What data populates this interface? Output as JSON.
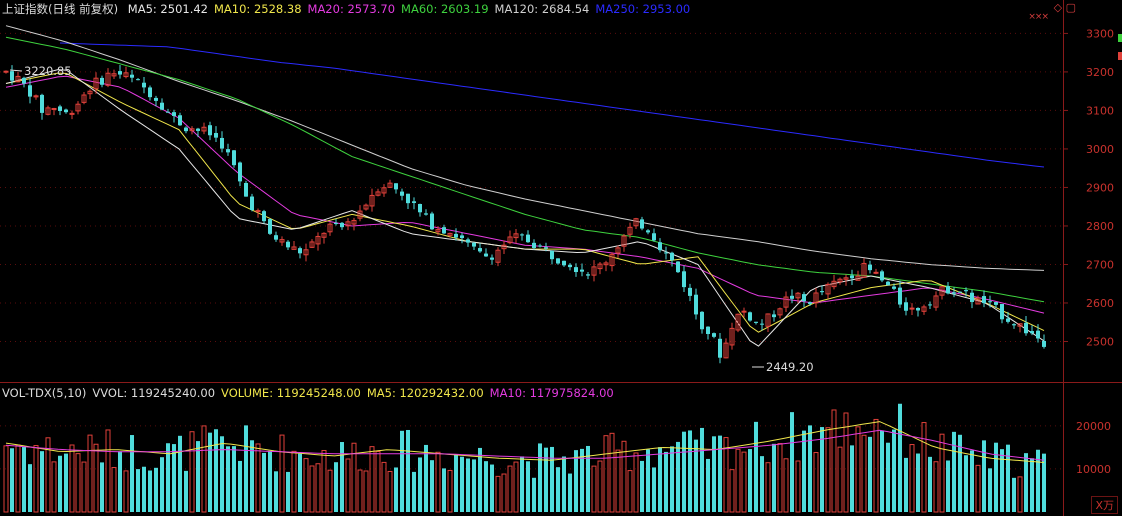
{
  "header": {
    "title": "上证指数(日线 前复权)",
    "ma_items": [
      {
        "label": "MA5: 2501.42",
        "color": "#e6e6e6"
      },
      {
        "label": "MA10: 2528.38",
        "color": "#f0e64b"
      },
      {
        "label": "MA20: 2573.70",
        "color": "#e43be0"
      },
      {
        "label": "MA60: 2603.19",
        "color": "#3ed23e"
      },
      {
        "label": "MA120: 2684.54",
        "color": "#cfcfcf"
      },
      {
        "label": "MA250: 2953.00",
        "color": "#2b2bff"
      }
    ]
  },
  "volume_header": {
    "items": [
      {
        "label": "VOL-TDX(5,10)",
        "color": "#dcdcdc"
      },
      {
        "label": "VVOL: 119245240.00",
        "color": "#dcdcdc"
      },
      {
        "label": "VOLUME: 119245248.00",
        "color": "#f0e64b"
      },
      {
        "label": "MA5: 120292432.00",
        "color": "#f0e64b"
      },
      {
        "label": "MA10: 117975824.00",
        "color": "#e43be0"
      }
    ]
  },
  "volume_unit": "X万",
  "colors": {
    "up": "#e0413a",
    "down": "#50dcdc",
    "grid": "#5a0d0d",
    "axis_text": "#c8322d"
  },
  "chart_data": {
    "type": "candlestick",
    "price_axis": {
      "ylim": [
        2400,
        3340
      ],
      "ticks": [
        "3300",
        "3200",
        "3100",
        "3000",
        "2900",
        "2800",
        "2700",
        "2600",
        "2500"
      ]
    },
    "volume_axis": {
      "ylim": [
        0,
        26000
      ],
      "ticks": [
        "20000",
        "10000"
      ]
    },
    "annotations": {
      "high": "3220.85",
      "low": "2449.20"
    },
    "ma_end_values": {
      "MA5": 2501.42,
      "MA10": 2528.38,
      "MA20": 2573.7,
      "MA60": 2603.19,
      "MA120": 2684.54,
      "MA250": 2953.0
    },
    "price_path": [
      3200,
      3180,
      3150,
      3100,
      3110,
      3090,
      3120,
      3160,
      3180,
      3200,
      3190,
      3170,
      3150,
      3120,
      3080,
      3060,
      3050,
      3040,
      3020,
      2960,
      2880,
      2840,
      2780,
      2760,
      2740,
      2730,
      2760,
      2800,
      2790,
      2820,
      2850,
      2900,
      2910,
      2890,
      2860,
      2820,
      2800,
      2790,
      2770,
      2740,
      2720,
      2730,
      2760,
      2770,
      2760,
      2740,
      2720,
      2710,
      2690,
      2680,
      2700,
      2740,
      2780,
      2810,
      2790,
      2740,
      2700,
      2640,
      2560,
      2520,
      2460,
      2560,
      2580,
      2540,
      2560,
      2600,
      2620,
      2600,
      2620,
      2640,
      2660,
      2680,
      2690,
      2670,
      2640,
      2600,
      2580,
      2600,
      2620,
      2640,
      2630,
      2610,
      2600,
      2580,
      2560,
      2540,
      2520,
      2500
    ],
    "ma_paths": {
      "MA250": [
        3275,
        3270,
        3265,
        3245,
        3225,
        3210,
        3190,
        3170,
        3150,
        3130,
        3110,
        3090,
        3070,
        3050,
        3030,
        3010,
        2990,
        2970,
        2953
      ],
      "MA120": [
        3320,
        3280,
        3230,
        3175,
        3125,
        3070,
        3010,
        2950,
        2905,
        2870,
        2840,
        2810,
        2780,
        2760,
        2735,
        2715,
        2700,
        2690,
        2684.54
      ],
      "MA60": [
        3290,
        3260,
        3220,
        3180,
        3130,
        3060,
        2980,
        2930,
        2880,
        2830,
        2790,
        2770,
        2730,
        2700,
        2680,
        2670,
        2650,
        2630,
        2603.19
      ],
      "MA20": [
        3160,
        3190,
        3160,
        3080,
        2940,
        2830,
        2800,
        2810,
        2780,
        2750,
        2740,
        2720,
        2690,
        2620,
        2600,
        2620,
        2640,
        2610,
        2573.7
      ],
      "MA10": [
        3170,
        3200,
        3120,
        3050,
        2860,
        2790,
        2830,
        2800,
        2760,
        2740,
        2740,
        2700,
        2720,
        2520,
        2600,
        2640,
        2660,
        2600,
        2528.38
      ],
      "MA5": [
        3170,
        3210,
        3100,
        3000,
        2820,
        2790,
        2840,
        2780,
        2760,
        2740,
        2730,
        2760,
        2700,
        2480,
        2640,
        2670,
        2640,
        2600,
        2501.42
      ]
    },
    "volume_ma": {
      "MA5": [
        16000,
        14000,
        14500,
        13500,
        16000,
        14000,
        13000,
        14500,
        13500,
        12500,
        12000,
        13500,
        15000,
        14500,
        16500,
        19000,
        21000,
        15000,
        12500,
        11500
      ],
      "MA10": [
        15500,
        14500,
        14000,
        14000,
        14500,
        14000,
        13500,
        13500,
        13500,
        13000,
        12500,
        12500,
        13500,
        14500,
        15500,
        17000,
        19000,
        16500,
        13500,
        12000
      ]
    }
  }
}
